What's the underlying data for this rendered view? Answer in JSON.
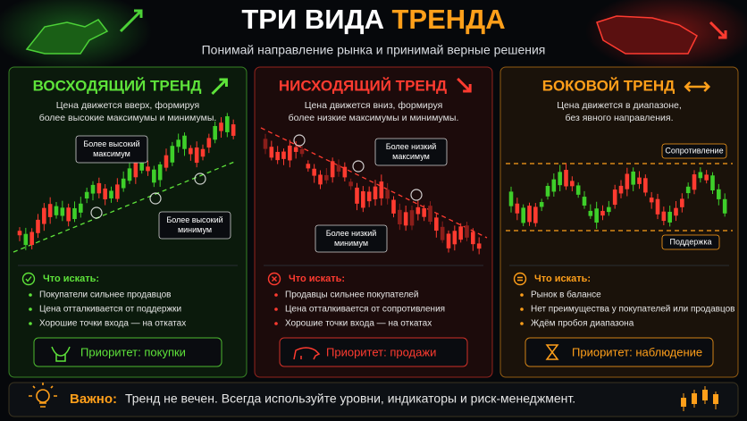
{
  "header": {
    "title_white": "ТРИ ВИДА",
    "title_accent": "ТРЕНДА",
    "subtitle": "Понимай направление рынка и принимай верные решения"
  },
  "panels": [
    {
      "title": "ВОСХОДЯЩИЙ ТРЕНД",
      "description": [
        "Цена движется вверх, формируя",
        "более высокие максимумы и минимумы."
      ],
      "callouts": [
        {
          "lines": [
            "Более высокий",
            "максимум"
          ]
        },
        {
          "lines": [
            "Более высокий",
            "минимум"
          ]
        }
      ],
      "look_for": "Что искать:",
      "bullets": [
        "Покупатели сильнее продавцов",
        "Цена отталкивается от поддержки",
        "Хорошие точки входа — на откатах"
      ],
      "priority": "Приоритет: покупки"
    },
    {
      "title": "НИСХОДЯЩИЙ ТРЕНД",
      "description": [
        "Цена движется вниз, формируя",
        "более низкие максимумы и минимумы."
      ],
      "callouts": [
        {
          "lines": [
            "Более низкий",
            "максимум"
          ]
        },
        {
          "lines": [
            "Более низкий",
            "минимум"
          ]
        }
      ],
      "look_for": "Что искать:",
      "bullets": [
        "Продавцы сильнее покупателей",
        "Цена отталкивается от сопротивления",
        "Хорошие точки входа — на откатах"
      ],
      "priority": "Приоритет: продажи"
    },
    {
      "title": "БОКОВОЙ ТРЕНД",
      "description": [
        "Цена движется в диапазоне,",
        "без явного направления."
      ],
      "callouts": [
        {
          "lines": [
            "Сопротивление"
          ]
        },
        {
          "lines": [
            "Поддержка"
          ]
        }
      ],
      "look_for": "Что искать:",
      "bullets": [
        "Рынок в балансе",
        "Нет преимущества у покупателей или продавцов",
        "Ждём пробоя диапазона"
      ],
      "priority": "Приоритет: наблюдение"
    }
  ],
  "footer": {
    "label": "Важно:",
    "text": "Тренд не вечен. Всегда используйте уровни, индикаторы и риск-менеджмент."
  }
}
